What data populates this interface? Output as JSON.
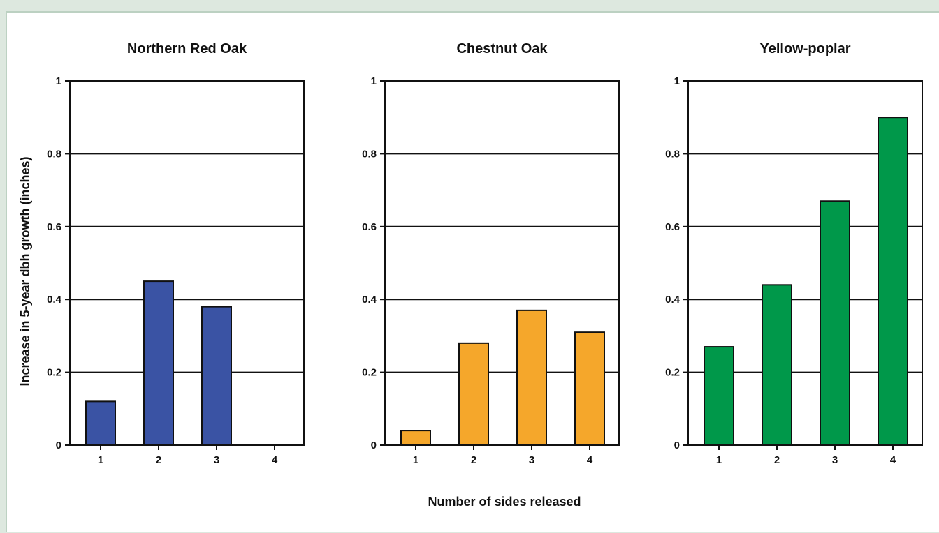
{
  "figure": {
    "ylabel": "Increase in 5-year dbh growth (inches)",
    "xlabel": "Number of sides released"
  },
  "chart_data": [
    {
      "type": "bar",
      "title": "Northern Red Oak",
      "categories": [
        "1",
        "2",
        "3",
        "4"
      ],
      "values": [
        0.12,
        0.45,
        0.38,
        0
      ],
      "color": "#3a53a4",
      "ylim": [
        0,
        1
      ],
      "yticks": [
        "0",
        "0.2",
        "0.4",
        "0.6",
        "0.8",
        "1"
      ],
      "grid": true
    },
    {
      "type": "bar",
      "title": "Chestnut Oak",
      "categories": [
        "1",
        "2",
        "3",
        "4"
      ],
      "values": [
        0.04,
        0.28,
        0.37,
        0.31
      ],
      "color": "#f5a72b",
      "ylim": [
        0,
        1
      ],
      "yticks": [
        "0",
        "0.2",
        "0.4",
        "0.6",
        "0.8",
        "1"
      ],
      "grid": true
    },
    {
      "type": "bar",
      "title": "Yellow-poplar",
      "categories": [
        "1",
        "2",
        "3",
        "4"
      ],
      "values": [
        0.27,
        0.44,
        0.67,
        0.9
      ],
      "color": "#00984a",
      "ylim": [
        0,
        1
      ],
      "yticks": [
        "0",
        "0.2",
        "0.4",
        "0.6",
        "0.8",
        "1"
      ],
      "grid": true
    }
  ]
}
